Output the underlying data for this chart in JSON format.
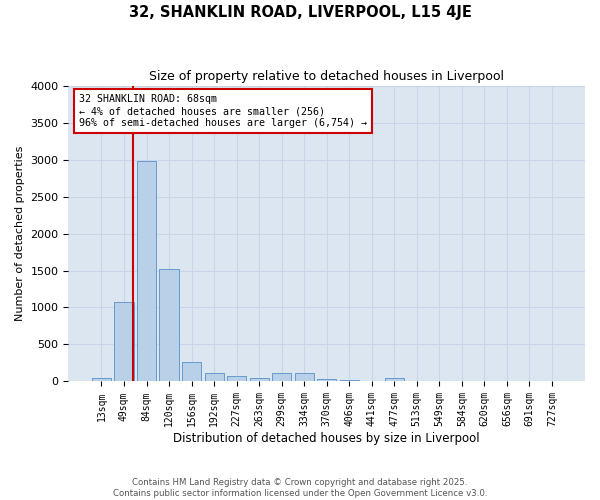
{
  "title1": "32, SHANKLIN ROAD, LIVERPOOL, L15 4JE",
  "title2": "Size of property relative to detached houses in Liverpool",
  "xlabel": "Distribution of detached houses by size in Liverpool",
  "ylabel": "Number of detached properties",
  "categories": [
    "13sqm",
    "49sqm",
    "84sqm",
    "120sqm",
    "156sqm",
    "192sqm",
    "227sqm",
    "263sqm",
    "299sqm",
    "334sqm",
    "370sqm",
    "406sqm",
    "441sqm",
    "477sqm",
    "513sqm",
    "549sqm",
    "584sqm",
    "620sqm",
    "656sqm",
    "691sqm",
    "727sqm"
  ],
  "values": [
    50,
    1080,
    2980,
    1520,
    260,
    110,
    75,
    50,
    110,
    110,
    40,
    25,
    0,
    50,
    0,
    0,
    0,
    0,
    0,
    0,
    0
  ],
  "bar_color": "#b8d0e8",
  "bar_edge_color": "#6699cc",
  "grid_color": "#c8d4e8",
  "bg_color": "#dce6f0",
  "annotation_text": "32 SHANKLIN ROAD: 68sqm\n← 4% of detached houses are smaller (256)\n96% of semi-detached houses are larger (6,754) →",
  "annotation_box_color": "#ffffff",
  "annotation_border_color": "#cc0000",
  "vline_color": "#cc0000",
  "ylim": [
    0,
    4000
  ],
  "yticks": [
    0,
    500,
    1000,
    1500,
    2000,
    2500,
    3000,
    3500,
    4000
  ],
  "footnote1": "Contains HM Land Registry data © Crown copyright and database right 2025.",
  "footnote2": "Contains public sector information licensed under the Open Government Licence v3.0."
}
